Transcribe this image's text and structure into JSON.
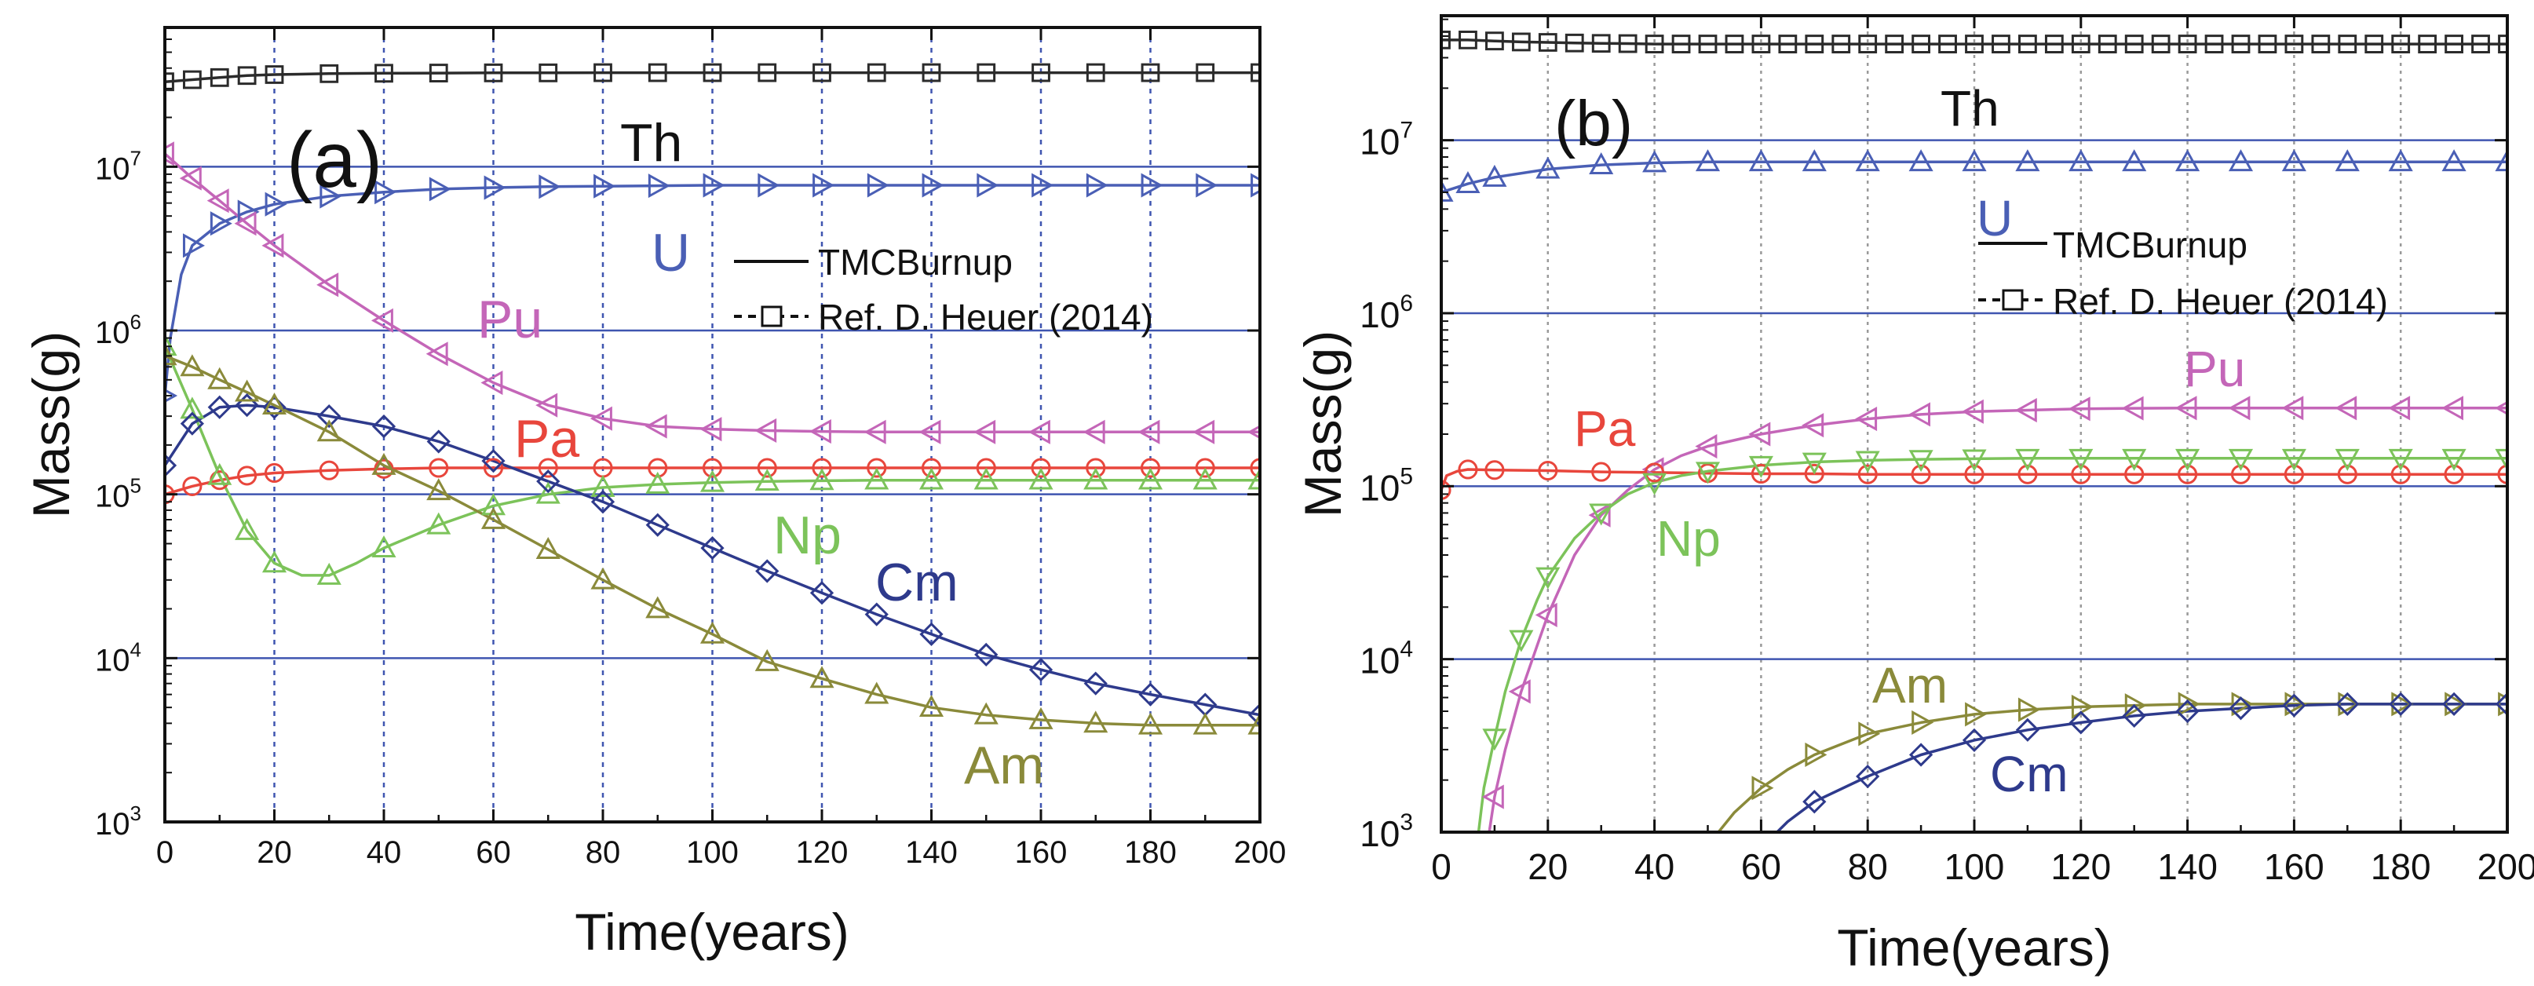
{
  "figure": {
    "x_axis_title": "Time(years)",
    "y_axis_title": "Mass(g)"
  },
  "legend": {
    "sim_label": "TMCBurnup",
    "ref_label": "Ref. D. Heuer (2014)"
  },
  "colors": {
    "Th": "#2b2b2b",
    "U": "#4a5fb5",
    "Pu": "#c466b8",
    "Pa": "#e8463c",
    "Np": "#7cc35a",
    "Cm": "#2e3a8c",
    "Am": "#8a8a3a",
    "grid": "#3f55b0"
  },
  "chart_data": [
    {
      "type": "line",
      "panel_label": "(a)",
      "xlabel": "Time(years)",
      "ylabel": "Mass(g)",
      "xlim": [
        0,
        200
      ],
      "ylim_log10": [
        3,
        7.85
      ],
      "y_scale": "log",
      "x_ticks": [
        "0",
        "20",
        "40",
        "60",
        "80",
        "100",
        "120",
        "140",
        "160",
        "180",
        "200"
      ],
      "y_ticks": [
        {
          "base": "10",
          "exp": "3",
          "value": 1000
        },
        {
          "base": "10",
          "exp": "4",
          "value": 10000
        },
        {
          "base": "10",
          "exp": "5",
          "value": 100000
        },
        {
          "base": "10",
          "exp": "6",
          "value": 1000000
        },
        {
          "base": "10",
          "exp": "7",
          "value": 10000000
        }
      ],
      "legend_position": "upper-right",
      "series": [
        {
          "name": "Th",
          "marker": "square",
          "x": [
            0,
            5,
            10,
            15,
            20,
            30,
            40,
            50,
            60,
            70,
            80,
            90,
            100,
            110,
            120,
            130,
            140,
            150,
            160,
            170,
            180,
            190,
            200
          ],
          "y": [
            33000000,
            34000000,
            35000000,
            36000000,
            36500000,
            37000000,
            37200000,
            37300000,
            37400000,
            37400000,
            37500000,
            37500000,
            37500000,
            37500000,
            37500000,
            37500000,
            37500000,
            37500000,
            37500000,
            37500000,
            37500000,
            37500000,
            37500000
          ]
        },
        {
          "name": "U",
          "marker": "tri-right",
          "x": [
            0,
            1,
            3,
            5,
            10,
            15,
            20,
            30,
            40,
            50,
            60,
            70,
            80,
            90,
            100,
            110,
            120,
            130,
            140,
            150,
            160,
            170,
            180,
            190,
            200
          ],
          "y": [
            400000,
            900000,
            2200000,
            3300000,
            4500000,
            5300000,
            5900000,
            6600000,
            7000000,
            7300000,
            7450000,
            7550000,
            7600000,
            7650000,
            7700000,
            7700000,
            7700000,
            7700000,
            7700000,
            7700000,
            7700000,
            7700000,
            7700000,
            7700000,
            7700000
          ]
        },
        {
          "name": "Pu",
          "marker": "tri-left",
          "x": [
            0,
            5,
            10,
            15,
            20,
            30,
            40,
            50,
            60,
            70,
            80,
            90,
            100,
            110,
            120,
            130,
            140,
            150,
            160,
            170,
            180,
            190,
            200
          ],
          "y": [
            12000000,
            8500000,
            6200000,
            4500000,
            3300000,
            1900000,
            1150000,
            720000,
            480000,
            350000,
            290000,
            260000,
            250000,
            245000,
            242000,
            240000,
            240000,
            240000,
            240000,
            240000,
            240000,
            240000,
            240000
          ]
        },
        {
          "name": "Pa",
          "marker": "circle",
          "x": [
            0,
            5,
            10,
            15,
            20,
            30,
            40,
            50,
            60,
            70,
            80,
            90,
            100,
            110,
            120,
            130,
            140,
            150,
            160,
            170,
            180,
            190,
            200
          ],
          "y": [
            100000,
            112000,
            122000,
            130000,
            135000,
            140000,
            143000,
            145000,
            145000,
            145000,
            145000,
            145000,
            145000,
            145000,
            145000,
            145000,
            145000,
            145000,
            145000,
            145000,
            145000,
            145000,
            145000
          ]
        },
        {
          "name": "Np",
          "marker": "tri-up",
          "x": [
            0,
            5,
            10,
            15,
            20,
            25,
            30,
            35,
            40,
            50,
            60,
            70,
            80,
            90,
            100,
            110,
            120,
            130,
            140,
            150,
            160,
            170,
            180,
            190,
            200
          ],
          "y": [
            800000,
            330000,
            130000,
            60000,
            38000,
            32000,
            32000,
            38000,
            47000,
            65000,
            85000,
            100000,
            110000,
            115000,
            118000,
            120000,
            121000,
            122000,
            122000,
            122000,
            122000,
            122000,
            122000,
            122000,
            122000
          ]
        },
        {
          "name": "Cm",
          "marker": "diamond",
          "x": [
            0,
            5,
            10,
            15,
            20,
            30,
            40,
            50,
            60,
            70,
            80,
            90,
            100,
            110,
            120,
            130,
            140,
            150,
            160,
            170,
            180,
            190,
            200
          ],
          "y": [
            150000,
            270000,
            340000,
            350000,
            340000,
            300000,
            260000,
            210000,
            160000,
            120000,
            90000,
            65000,
            47000,
            34000,
            25000,
            18500,
            14000,
            10500,
            8500,
            7000,
            6000,
            5200,
            4500
          ]
        },
        {
          "name": "Am",
          "marker": "tri-up",
          "x": [
            0,
            5,
            10,
            15,
            20,
            30,
            40,
            50,
            60,
            70,
            80,
            90,
            100,
            110,
            120,
            130,
            140,
            150,
            160,
            170,
            180,
            190,
            200
          ],
          "y": [
            700000,
            600000,
            500000,
            420000,
            350000,
            240000,
            150000,
            105000,
            70000,
            46000,
            30000,
            20000,
            14000,
            9500,
            7500,
            6000,
            5000,
            4500,
            4200,
            4000,
            3900,
            3900,
            3900
          ]
        }
      ],
      "annotations": [
        "Th",
        "U",
        "Pu",
        "Pa",
        "Np",
        "Cm",
        "Am"
      ]
    },
    {
      "type": "line",
      "panel_label": "(b)",
      "xlabel": "Time(years)",
      "ylabel": "Mass(g)",
      "xlim": [
        0,
        200
      ],
      "ylim_log10": [
        3,
        7.72
      ],
      "y_scale": "log",
      "x_ticks": [
        "0",
        "20",
        "40",
        "60",
        "80",
        "100",
        "120",
        "140",
        "160",
        "180",
        "200"
      ],
      "y_ticks": [
        {
          "base": "10",
          "exp": "3",
          "value": 1000
        },
        {
          "base": "10",
          "exp": "4",
          "value": 10000
        },
        {
          "base": "10",
          "exp": "5",
          "value": 100000
        },
        {
          "base": "10",
          "exp": "6",
          "value": 1000000
        },
        {
          "base": "10",
          "exp": "7",
          "value": 10000000
        }
      ],
      "legend_position": "upper-right",
      "series": [
        {
          "name": "Th",
          "marker": "square",
          "x": [
            0,
            5,
            10,
            15,
            20,
            25,
            30,
            35,
            40,
            45,
            50,
            55,
            60,
            65,
            70,
            75,
            80,
            85,
            90,
            95,
            100,
            105,
            110,
            115,
            120,
            125,
            130,
            135,
            140,
            145,
            150,
            155,
            160,
            165,
            170,
            175,
            180,
            185,
            190,
            195,
            200
          ],
          "y": [
            38000000,
            38000000,
            37500000,
            37000000,
            36800000,
            36500000,
            36300000,
            36200000,
            36000000,
            36000000,
            36000000,
            36000000,
            36000000,
            36000000,
            36000000,
            36000000,
            36000000,
            36000000,
            36000000,
            36000000,
            36000000,
            36000000,
            36000000,
            36000000,
            36000000,
            36000000,
            36000000,
            36000000,
            36000000,
            36000000,
            36000000,
            36000000,
            36000000,
            36000000,
            36000000,
            36000000,
            36000000,
            36000000,
            36000000,
            36000000,
            36000000
          ]
        },
        {
          "name": "U",
          "marker": "tri-up",
          "x": [
            0,
            5,
            10,
            20,
            30,
            40,
            50,
            60,
            70,
            80,
            90,
            100,
            110,
            120,
            130,
            140,
            150,
            160,
            170,
            180,
            190,
            200
          ],
          "y": [
            5000000,
            5600000,
            6100000,
            6800000,
            7200000,
            7400000,
            7500000,
            7500000,
            7500000,
            7500000,
            7500000,
            7500000,
            7500000,
            7500000,
            7500000,
            7500000,
            7500000,
            7500000,
            7500000,
            7500000,
            7500000,
            7500000
          ]
        },
        {
          "name": "Pu",
          "marker": "tri-left",
          "x": [
            9,
            10,
            12,
            15,
            18,
            20,
            25,
            30,
            35,
            40,
            45,
            50,
            60,
            70,
            80,
            90,
            100,
            110,
            120,
            130,
            140,
            150,
            160,
            170,
            180,
            190,
            200
          ],
          "y": [
            1000,
            1600,
            3000,
            6500,
            12000,
            18000,
            40000,
            68000,
            95000,
            125000,
            150000,
            170000,
            200000,
            225000,
            245000,
            260000,
            270000,
            275000,
            280000,
            282000,
            283000,
            283000,
            283000,
            283000,
            283000,
            283000,
            283000
          ]
        },
        {
          "name": "Pa",
          "marker": "circle",
          "x": [
            0,
            1,
            3,
            5,
            10,
            20,
            30,
            40,
            50,
            60,
            70,
            80,
            90,
            100,
            110,
            120,
            130,
            140,
            150,
            160,
            170,
            180,
            190,
            200
          ],
          "y": [
            95000,
            115000,
            122000,
            125000,
            124000,
            123000,
            121000,
            120000,
            119000,
            118000,
            118000,
            117000,
            117000,
            117000,
            117000,
            117000,
            117000,
            117000,
            117000,
            117000,
            117000,
            117000,
            117000,
            117000
          ]
        },
        {
          "name": "Np",
          "marker": "tri-down",
          "x": [
            7,
            8,
            10,
            12,
            15,
            18,
            20,
            25,
            30,
            35,
            40,
            45,
            50,
            60,
            70,
            80,
            90,
            100,
            110,
            120,
            130,
            140,
            150,
            160,
            170,
            180,
            190,
            200
          ],
          "y": [
            1000,
            1800,
            3500,
            6500,
            13000,
            22000,
            30000,
            50000,
            70000,
            90000,
            105000,
            115000,
            122000,
            132000,
            138000,
            141000,
            143000,
            144000,
            145000,
            145000,
            145000,
            145000,
            145000,
            145000,
            145000,
            145000,
            145000,
            145000
          ]
        },
        {
          "name": "Am",
          "marker": "tri-right",
          "x": [
            52,
            55,
            60,
            65,
            70,
            80,
            90,
            100,
            110,
            120,
            130,
            140,
            150,
            160,
            170,
            180,
            190,
            200
          ],
          "y": [
            1000,
            1300,
            1800,
            2300,
            2800,
            3700,
            4300,
            4800,
            5100,
            5300,
            5400,
            5500,
            5500,
            5500,
            5500,
            5500,
            5500,
            5500
          ]
        },
        {
          "name": "Cm",
          "marker": "diamond",
          "x": [
            63,
            65,
            70,
            80,
            90,
            100,
            110,
            120,
            130,
            140,
            150,
            160,
            170,
            180,
            190,
            200
          ],
          "y": [
            1000,
            1150,
            1500,
            2100,
            2800,
            3400,
            3900,
            4300,
            4700,
            5000,
            5200,
            5400,
            5500,
            5500,
            5500,
            5500
          ]
        }
      ],
      "annotations": [
        "Th",
        "U",
        "Pu",
        "Pa",
        "Np",
        "Am",
        "Cm"
      ]
    }
  ]
}
